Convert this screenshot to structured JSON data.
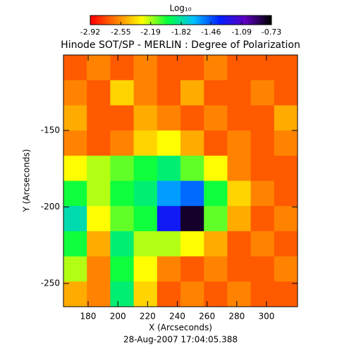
{
  "chart_data": {
    "type": "heatmap",
    "title": "Hinode SOT/SP - MERLIN : Degree of Polarization",
    "x_label": "X (Arcseconds)",
    "y_label": "Y (Arcseconds)",
    "footer": "28-Aug-2007 17:04:05.388",
    "colorbar_label": "Log₁₀",
    "xlim": [
      163.4,
      320.9
    ],
    "ylim": [
      -265.2,
      -100.7
    ],
    "xticks": [
      180,
      200,
      220,
      240,
      260,
      280,
      300
    ],
    "yticks": [
      -150,
      -200,
      -250
    ],
    "zlim": [
      -2.92,
      -0.73
    ],
    "colorbar_ticks": [
      -2.92,
      -2.55,
      -2.19,
      -1.82,
      -1.46,
      -1.09,
      -0.73
    ],
    "colormap": [
      "#ff0000",
      "#ff8000",
      "#ffff00",
      "#00ff40",
      "#00c0ff",
      "#0020ff",
      "#6000c0",
      "#000000"
    ],
    "z": [
      [
        -2.7,
        -2.6,
        -2.7,
        -2.6,
        -2.7,
        -2.7,
        -2.6,
        -2.7,
        -2.7,
        -2.7
      ],
      [
        -2.6,
        -2.7,
        -2.4,
        -2.6,
        -2.7,
        -2.5,
        -2.7,
        -2.7,
        -2.6,
        -2.7
      ],
      [
        -2.5,
        -2.7,
        -2.7,
        -2.5,
        -2.6,
        -2.7,
        -2.6,
        -2.7,
        -2.7,
        -2.5
      ],
      [
        -2.6,
        -2.7,
        -2.6,
        -2.4,
        -2.3,
        -2.5,
        -2.7,
        -2.6,
        -2.7,
        -2.6
      ],
      [
        -2.3,
        -2.2,
        -2.1,
        -2.0,
        -1.9,
        -2.1,
        -2.3,
        -2.6,
        -2.7,
        -2.7
      ],
      [
        -2.0,
        -2.2,
        -2.0,
        -1.9,
        -1.6,
        -1.5,
        -2.0,
        -2.4,
        -2.6,
        -2.7
      ],
      [
        -1.8,
        -2.3,
        -2.1,
        -2.0,
        -1.3,
        -0.8,
        -2.1,
        -2.5,
        -2.7,
        -2.6
      ],
      [
        -2.0,
        -2.5,
        -1.9,
        -2.2,
        -2.2,
        -2.3,
        -2.5,
        -2.7,
        -2.6,
        -2.7
      ],
      [
        -2.2,
        -2.6,
        -2.0,
        -2.3,
        -2.6,
        -2.7,
        -2.6,
        -2.7,
        -2.7,
        -2.6
      ],
      [
        -2.5,
        -2.6,
        -1.9,
        -2.4,
        -2.7,
        -2.6,
        -2.7,
        -2.6,
        -2.7,
        -2.7
      ]
    ]
  }
}
